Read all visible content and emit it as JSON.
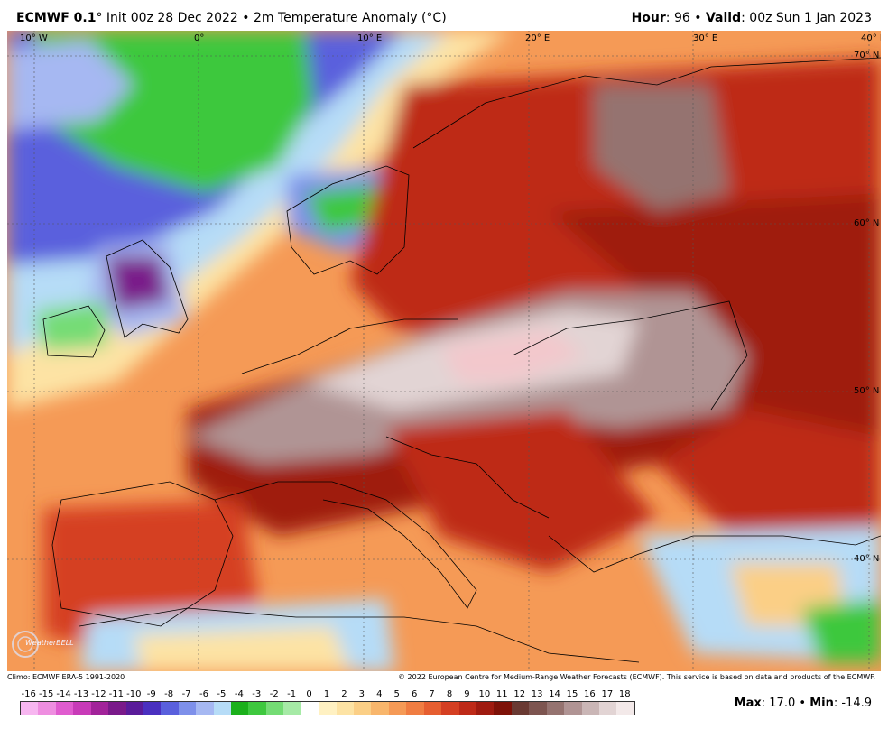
{
  "header": {
    "model": "ECMWF 0.1",
    "degree": "°",
    "init": "Init 00z 28 Dec 2022",
    "sep": "•",
    "product": "2m Temperature Anomaly (°C)",
    "hour_label": "Hour",
    "hour_value": "96",
    "valid_label": "Valid",
    "valid_value": "00z Sun 1 Jan 2023"
  },
  "map": {
    "lon_labels": [
      "10° W",
      "0°",
      "10° E",
      "20° E",
      "30° E",
      "40° E"
    ],
    "lat_labels": [
      "70° N",
      "60° N",
      "50° N",
      "40° N"
    ],
    "logo_text": "WeatherBELL"
  },
  "footer": {
    "climo": "Climo: ECMWF ERA-5 1991-2020",
    "copyright": "© 2022 European Centre for Medium-Range Weather Forecasts (ECMWF). This service is based on data and products of the ECMWF."
  },
  "legend": {
    "ticks": [
      "-16",
      "-15",
      "-14",
      "-13",
      "-12",
      "-11",
      "-10",
      "-9",
      "-8",
      "-7",
      "-6",
      "-5",
      "-4",
      "-3",
      "-2",
      "-1",
      "0",
      "1",
      "2",
      "3",
      "4",
      "5",
      "6",
      "7",
      "8",
      "9",
      "10",
      "11",
      "12",
      "13",
      "14",
      "15",
      "16",
      "17",
      "18"
    ],
    "colors": [
      "#f7b6f0",
      "#ee8ee0",
      "#e05ccf",
      "#c83bb8",
      "#a2239a",
      "#7a1a8a",
      "#5a1c9a",
      "#4a30c0",
      "#5a60dd",
      "#7e90ea",
      "#a6b8f2",
      "#b6dcf7",
      "#1bb01b",
      "#3ec83e",
      "#74dc74",
      "#a6eaa6",
      "#ffffff",
      "#fff1c2",
      "#fde3a4",
      "#fbcf86",
      "#f8b66c",
      "#f59a56",
      "#f07d42",
      "#e65e30",
      "#d53f22",
      "#be2a18",
      "#9f1b10",
      "#7e1208",
      "#6a3a33",
      "#7d5550",
      "#957370",
      "#b09494",
      "#cab6b6",
      "#e2d4d4",
      "#f3e9e9"
    ],
    "max_label": "Max",
    "max_value": "17.0",
    "min_label": "Min",
    "min_value": "-14.9"
  }
}
